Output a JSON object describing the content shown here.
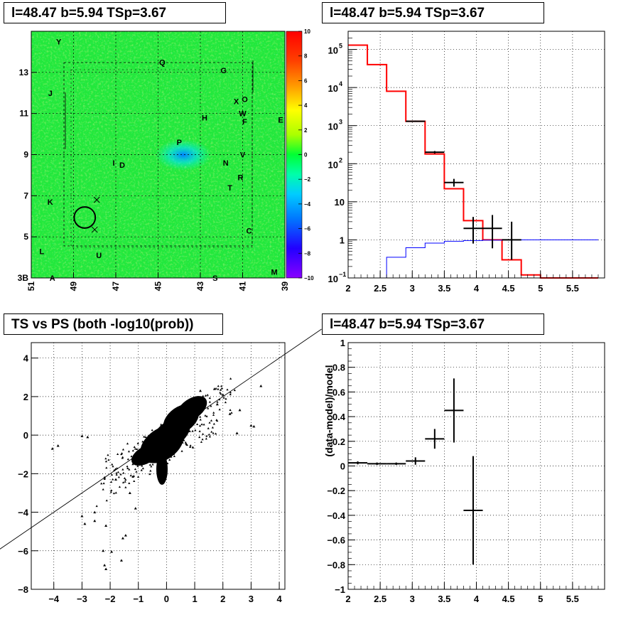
{
  "chart_data": [
    {
      "panel": "top-left",
      "type": "heatmap",
      "title": "l=48.47 b=5.94 TSp=3.67",
      "x_ticks": [
        51,
        49,
        47,
        45,
        43,
        41,
        39
      ],
      "y_ticks": [
        3,
        5,
        7,
        9,
        11,
        13
      ],
      "y_first_tick_label": "3B",
      "xlim": [
        51,
        39
      ],
      "ylim": [
        3,
        15
      ],
      "colorbar": {
        "ticks": [
          10,
          8,
          6,
          4,
          2,
          0,
          -2,
          -4,
          -6,
          -8,
          -10
        ],
        "range": [
          -10,
          10
        ]
      },
      "source_labels": [
        {
          "text": "Y",
          "x": 49.7,
          "y": 14.5
        },
        {
          "text": "Q",
          "x": 44.8,
          "y": 13.5
        },
        {
          "text": "G",
          "x": 41.9,
          "y": 13.1
        },
        {
          "text": "J",
          "x": 50.1,
          "y": 12.0
        },
        {
          "text": "X",
          "x": 41.3,
          "y": 11.6
        },
        {
          "text": "O",
          "x": 40.9,
          "y": 11.7
        },
        {
          "text": "W",
          "x": 41.0,
          "y": 11.0
        },
        {
          "text": "F",
          "x": 40.9,
          "y": 10.6
        },
        {
          "text": "H",
          "x": 42.8,
          "y": 10.8
        },
        {
          "text": "E",
          "x": 39.2,
          "y": 10.7
        },
        {
          "text": "P",
          "x": 44.0,
          "y": 9.6
        },
        {
          "text": "V",
          "x": 41.0,
          "y": 9.0
        },
        {
          "text": "I",
          "x": 47.1,
          "y": 8.6
        },
        {
          "text": "D",
          "x": 46.7,
          "y": 8.5
        },
        {
          "text": "N",
          "x": 41.8,
          "y": 8.6
        },
        {
          "text": "R",
          "x": 41.1,
          "y": 7.9
        },
        {
          "text": "T",
          "x": 41.6,
          "y": 7.4
        },
        {
          "text": "K",
          "x": 50.1,
          "y": 6.7
        },
        {
          "text": "C",
          "x": 40.7,
          "y": 5.3
        },
        {
          "text": "L",
          "x": 50.5,
          "y": 4.3
        },
        {
          "text": "U",
          "x": 47.8,
          "y": 4.1
        },
        {
          "text": "A",
          "x": 50.0,
          "y": 3.0
        },
        {
          "text": "S",
          "x": 42.3,
          "y": 3.0
        },
        {
          "text": "M",
          "x": 39.5,
          "y": 3.3
        }
      ],
      "circle": {
        "x": 48.47,
        "y": 5.94,
        "r": 0.5
      },
      "crosses": [
        {
          "x": 47.9,
          "y": 6.8
        },
        {
          "x": 48.0,
          "y": 5.35
        }
      ]
    },
    {
      "panel": "top-right",
      "type": "line",
      "title": "l=48.47 b=5.94 TSp=3.67",
      "xlim": [
        2,
        6
      ],
      "ylim": [
        0.1,
        300000
      ],
      "log_y": true,
      "x_ticks": [
        "2",
        "2.5",
        "3",
        "3.5",
        "4",
        "4.5",
        "5",
        "5.5"
      ],
      "y_ticks": [
        {
          "base": "10",
          "exp": "5",
          "value": 100000
        },
        {
          "base": "10",
          "exp": "4",
          "value": 10000
        },
        {
          "base": "10",
          "exp": "3",
          "value": 1000
        },
        {
          "base": "10",
          "exp": "2",
          "value": 100
        },
        {
          "base": "10",
          "exp": "",
          "value": 10
        },
        {
          "base": "1",
          "exp": "",
          "value": 1
        },
        {
          "base": "10",
          "exp": "−1",
          "value": 0.1
        }
      ],
      "grid": true,
      "series": [
        {
          "color": "#ff0000",
          "edges": [
            2.0,
            2.3,
            2.6,
            2.9,
            3.2,
            3.5,
            3.8,
            4.1,
            4.4,
            4.7,
            5.0,
            5.3,
            5.6,
            5.9
          ],
          "values": [
            130000,
            40000,
            8000,
            1300,
            180,
            22,
            3.2,
            1.0,
            0.3,
            0.12,
            0.1,
            0.1,
            0.1
          ]
        },
        {
          "color": "#0000ff",
          "edges": [
            2.0,
            2.3,
            2.6,
            2.9,
            3.2,
            3.5,
            3.8,
            4.1,
            4.4,
            4.7,
            5.0,
            5.3,
            5.6,
            5.9
          ],
          "values": [
            0.05,
            0.05,
            0.35,
            0.62,
            0.82,
            0.92,
            0.96,
            0.98,
            0.99,
            1.0,
            1.0,
            1.0,
            1.0
          ]
        }
      ],
      "data_points": [
        {
          "x": 3.05,
          "y": 1300,
          "xerr": 0.15,
          "ylo": 1250,
          "yhi": 1350
        },
        {
          "x": 3.35,
          "y": 200,
          "xerr": 0.15,
          "ylo": 185,
          "yhi": 215
        },
        {
          "x": 3.65,
          "y": 32,
          "xerr": 0.15,
          "ylo": 25,
          "yhi": 40
        },
        {
          "x": 3.95,
          "y": 2,
          "xerr": 0.15,
          "ylo": 0.8,
          "yhi": 4
        },
        {
          "x": 4.25,
          "y": 2,
          "xerr": 0.15,
          "ylo": 0.6,
          "yhi": 4.5
        },
        {
          "x": 4.55,
          "y": 1,
          "xerr": 0.15,
          "ylo": 0.3,
          "yhi": 3
        }
      ]
    },
    {
      "panel": "bottom-left",
      "type": "scatter",
      "title": "TS vs PS (both -log10(prob))",
      "xlim": [
        -4.8,
        4.2
      ],
      "ylim": [
        -8,
        4.8
      ],
      "x_ticks": [
        -4,
        -3,
        -2,
        -1,
        0,
        1,
        2,
        3,
        4
      ],
      "y_ticks": [
        -8,
        -6,
        -4,
        -2,
        0,
        2,
        4
      ],
      "grid": true,
      "line": {
        "slope": 1,
        "intercept": 0
      },
      "sample_points": [
        {
          "x": -4.05,
          "y": -0.7
        },
        {
          "x": -3.85,
          "y": -0.55
        },
        {
          "x": -3.0,
          "y": -0.05
        },
        {
          "x": -2.8,
          "y": -0.1
        },
        {
          "x": -3.0,
          "y": -4.2
        },
        {
          "x": -2.9,
          "y": -4.6
        },
        {
          "x": -2.55,
          "y": -4.45
        },
        {
          "x": -2.15,
          "y": -4.7
        },
        {
          "x": -1.45,
          "y": -5.2
        },
        {
          "x": -1.55,
          "y": -5.35
        },
        {
          "x": -2.25,
          "y": -6.0
        },
        {
          "x": -1.95,
          "y": -6.05
        },
        {
          "x": -1.6,
          "y": -6.5
        },
        {
          "x": -2.2,
          "y": -6.75
        },
        {
          "x": -2.15,
          "y": -6.95
        },
        {
          "x": -2.55,
          "y": -4.0
        },
        {
          "x": -2.2,
          "y": -2.2
        },
        {
          "x": -1.8,
          "y": -2.3
        },
        {
          "x": -1.3,
          "y": -3.0
        },
        {
          "x": -1.1,
          "y": -3.8
        },
        {
          "x": 3.35,
          "y": 2.55
        },
        {
          "x": 3.0,
          "y": 0.5
        },
        {
          "x": 3.1,
          "y": 0.45
        },
        {
          "x": 2.6,
          "y": 1.3
        },
        {
          "x": 2.25,
          "y": 1.1
        },
        {
          "x": 2.5,
          "y": 0.1
        },
        {
          "x": 2.0,
          "y": 2.1
        },
        {
          "x": 1.7,
          "y": 2.4
        },
        {
          "x": 1.2,
          "y": 2.3
        },
        {
          "x": 1.8,
          "y": 1.6
        }
      ]
    },
    {
      "panel": "bottom-right",
      "type": "scatter",
      "title": "l=48.47 b=5.94 TSp=3.67",
      "ylabel": "(data-model)/model",
      "xlim": [
        2,
        6
      ],
      "ylim": [
        -1,
        1
      ],
      "x_ticks": [
        "2",
        "2.5",
        "3",
        "3.5",
        "4",
        "4.5",
        "5",
        "5.5"
      ],
      "y_ticks": [
        "1",
        "0.8",
        "0.6",
        "0.4",
        "0.2",
        "0",
        "−0.2",
        "−0.4",
        "−0.6",
        "−0.8",
        "−1"
      ],
      "grid": true,
      "points": [
        {
          "x": 2.15,
          "y": 0.025,
          "xerr": 0.15,
          "yerr": 0.012
        },
        {
          "x": 2.45,
          "y": 0.018,
          "xerr": 0.15,
          "yerr": 0.01
        },
        {
          "x": 2.75,
          "y": 0.018,
          "xerr": 0.15,
          "yerr": 0.01
        },
        {
          "x": 3.05,
          "y": 0.04,
          "xerr": 0.15,
          "yerr": 0.03
        },
        {
          "x": 3.35,
          "y": 0.22,
          "xerr": 0.15,
          "yerr": 0.08
        },
        {
          "x": 3.65,
          "y": 0.45,
          "xerr": 0.15,
          "yerr": 0.26
        },
        {
          "x": 3.95,
          "y": -0.36,
          "xerr": 0.15,
          "yerr": 0.44
        }
      ]
    }
  ]
}
